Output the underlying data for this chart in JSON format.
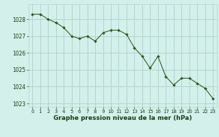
{
  "x": [
    0,
    1,
    2,
    3,
    4,
    5,
    6,
    7,
    8,
    9,
    10,
    11,
    12,
    13,
    14,
    15,
    16,
    17,
    18,
    19,
    20,
    21,
    22,
    23
  ],
  "y": [
    1028.3,
    1028.3,
    1028.0,
    1027.8,
    1027.5,
    1027.0,
    1026.85,
    1027.0,
    1026.7,
    1027.2,
    1027.35,
    1027.35,
    1027.1,
    1026.3,
    1025.8,
    1025.1,
    1025.8,
    1024.6,
    1024.1,
    1024.5,
    1024.5,
    1024.2,
    1023.9,
    1023.3
  ],
  "line_color": "#2d5a1b",
  "marker_color": "#2d5a1b",
  "bg_color": "#d4f0eb",
  "grid_color": "#aed4ce",
  "xlabel": "Graphe pression niveau de la mer (hPa)",
  "xlabel_color": "#1a3a10",
  "tick_color": "#1a3a10",
  "ylim": [
    1022.8,
    1028.9
  ],
  "yticks": [
    1023,
    1024,
    1025,
    1026,
    1027,
    1028
  ],
  "xticks": [
    0,
    1,
    2,
    3,
    4,
    5,
    6,
    7,
    8,
    9,
    10,
    11,
    12,
    13,
    14,
    15,
    16,
    17,
    18,
    19,
    20,
    21,
    22,
    23
  ],
  "figsize": [
    3.2,
    2.0
  ],
  "dpi": 100
}
